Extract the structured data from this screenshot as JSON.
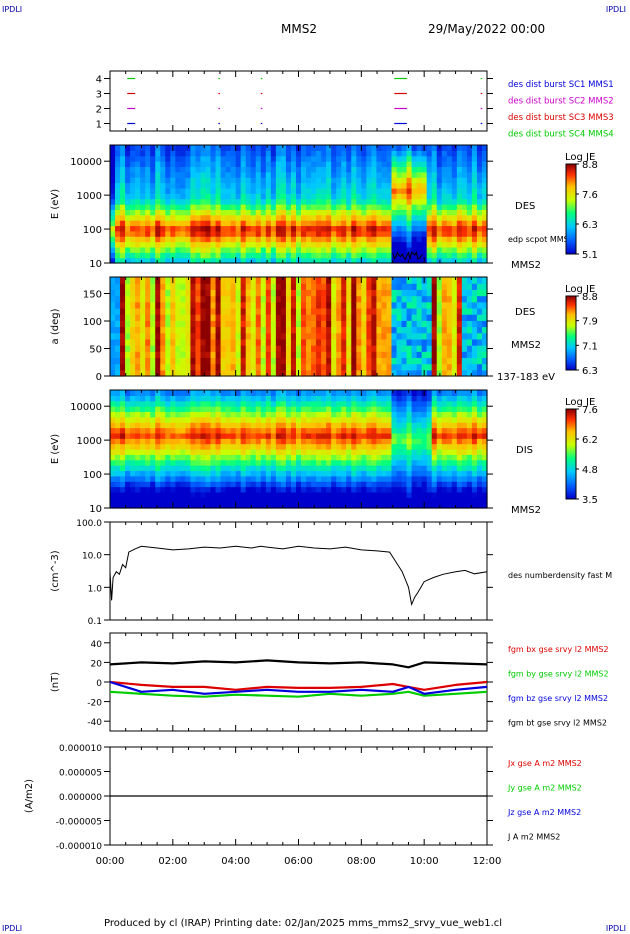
{
  "header": {
    "corner_label": "IPDLI",
    "spacecraft": "MMS2",
    "datetime": "29/May/2022 00:00"
  },
  "footer": {
    "text": "Produced by cl (IRAP)   Printing date: 02/Jan/2025   mms_mms2_srvy_vue_web1.cl"
  },
  "x_axis": {
    "ticks": [
      "00:00",
      "02:00",
      "04:00",
      "06:00",
      "08:00",
      "10:00",
      "12:00"
    ],
    "range_hours": [
      0,
      12
    ]
  },
  "colors": {
    "red": "#dd0000",
    "green": "#00cc00",
    "blue": "#0000dd",
    "magenta": "#cc00cc",
    "black": "#000000"
  },
  "chart_data": [
    {
      "type": "scatter",
      "id": "burst",
      "ylim": [
        0.5,
        4.5
      ],
      "y_ticks": [
        "1",
        "2",
        "3",
        "4"
      ],
      "legend": [
        {
          "label": "des dist burst SC1 MMS1",
          "color": "#0000dd"
        },
        {
          "label": "des dist burst SC2 MMS2",
          "color": "#cc00cc"
        },
        {
          "label": "des dist burst SC3 MMS3",
          "color": "#dd0000"
        },
        {
          "label": "des dist burst SC4 MMS4",
          "color": "#00cc00"
        }
      ],
      "series": [
        {
          "name": "des dist burst SC1 MMS1",
          "y": 1,
          "color": "#0000dd",
          "segments": [
            [
              0.55,
              0.8
            ],
            [
              3.45,
              3.47
            ],
            [
              4.8,
              4.82
            ],
            [
              9.05,
              9.45
            ],
            [
              11.8,
              11.85
            ]
          ]
        },
        {
          "name": "des dist burst SC2 MMS2",
          "y": 2,
          "color": "#cc00cc",
          "segments": [
            [
              0.55,
              0.8
            ],
            [
              3.45,
              3.47
            ],
            [
              4.8,
              4.82
            ],
            [
              9.05,
              9.45
            ],
            [
              11.8,
              11.85
            ]
          ]
        },
        {
          "name": "des dist burst SC3 MMS3",
          "y": 3,
          "color": "#dd0000",
          "segments": [
            [
              0.55,
              0.8
            ],
            [
              3.45,
              3.47
            ],
            [
              4.8,
              4.82
            ],
            [
              9.05,
              9.45
            ],
            [
              11.8,
              11.85
            ]
          ]
        },
        {
          "name": "des dist burst SC4 MMS4",
          "y": 4,
          "color": "#00cc00",
          "segments": [
            [
              0.55,
              0.8
            ],
            [
              3.45,
              3.47
            ],
            [
              4.8,
              4.82
            ],
            [
              9.05,
              9.45
            ],
            [
              11.8,
              11.85
            ]
          ]
        }
      ]
    },
    {
      "type": "heatmap",
      "id": "des_energy",
      "ylabel": "E (eV)",
      "y_scale": "log",
      "ylim": [
        10,
        30000
      ],
      "y_ticks": [
        "10",
        "100",
        "1000",
        "10000"
      ],
      "side_label": "DES",
      "overlay_label": "edp scpot MMS2",
      "mms_label": "MMS2",
      "colorbar": {
        "title": "Log JE",
        "ticks": [
          "8.8",
          "7.6",
          "6.3",
          "5.1"
        ],
        "min": 5.1,
        "max": 8.8
      }
    },
    {
      "type": "heatmap",
      "id": "des_pitch",
      "ylabel": "a (deg)",
      "ylim": [
        0,
        180
      ],
      "y_ticks": [
        "0",
        "50",
        "100",
        "150"
      ],
      "side_label": "DES",
      "mms_label": "MMS2",
      "energy_label": "137-183 eV",
      "colorbar": {
        "title": "Log JE",
        "ticks": [
          "8.8",
          "7.9",
          "7.1",
          "6.3"
        ],
        "min": 6.3,
        "max": 8.8
      }
    },
    {
      "type": "heatmap",
      "id": "dis_energy",
      "ylabel": "E (eV)",
      "y_scale": "log",
      "ylim": [
        10,
        30000
      ],
      "y_ticks": [
        "10",
        "100",
        "1000",
        "10000"
      ],
      "side_label": "DIS",
      "mms_label": "MMS2",
      "colorbar": {
        "title": "Log JE",
        "ticks": [
          "7.6",
          "6.2",
          "4.8",
          "3.5"
        ],
        "min": 3.5,
        "max": 7.6
      }
    },
    {
      "type": "line",
      "id": "density",
      "ylabel": "(cm^-3)",
      "y_scale": "log",
      "ylim": [
        0.1,
        100
      ],
      "y_ticks": [
        "0.1",
        "1.0",
        "10.0",
        "100.0"
      ],
      "legend": [
        {
          "label": "des numberdensity fast M",
          "color": "#000000"
        }
      ],
      "series": [
        {
          "name": "des numberdensity fast M",
          "color": "#000000",
          "x": [
            0.0,
            0.05,
            0.1,
            0.2,
            0.3,
            0.4,
            0.5,
            0.6,
            0.8,
            1.0,
            1.5,
            2.0,
            2.5,
            3.0,
            3.5,
            4.0,
            4.5,
            4.8,
            5.0,
            5.5,
            6.0,
            6.5,
            7.0,
            7.5,
            8.0,
            8.5,
            8.9,
            9.1,
            9.3,
            9.5,
            9.6,
            9.7,
            9.8,
            10.0,
            10.3,
            10.6,
            11.0,
            11.3,
            11.6,
            12.0
          ],
          "y": [
            3,
            0.4,
            2,
            3,
            2.5,
            5,
            4,
            12,
            15,
            18,
            16,
            14,
            15,
            17,
            16,
            18,
            16,
            18,
            17,
            15,
            18,
            16,
            15,
            17,
            14,
            13,
            12,
            6,
            3,
            1.0,
            0.3,
            0.5,
            0.7,
            1.5,
            2,
            2.5,
            3,
            3.3,
            2.6,
            3
          ]
        }
      ]
    },
    {
      "type": "line",
      "id": "fgm",
      "ylabel": "(nT)",
      "ylim": [
        -50,
        50
      ],
      "y_ticks": [
        "-40",
        "-20",
        "0",
        "20",
        "40"
      ],
      "legend": [
        {
          "label": "fgm bx gse srvy l2 MMS2",
          "color": "#dd0000"
        },
        {
          "label": "fgm by gse srvy l2 MMS2",
          "color": "#00cc00"
        },
        {
          "label": "fgm bz gse srvy l2 MMS2",
          "color": "#0000dd"
        },
        {
          "label": "fgm bt gse srvy l2 MMS2",
          "color": "#000000"
        }
      ],
      "series": [
        {
          "name": "fgm bx gse srvy l2 MMS2",
          "color": "#dd0000",
          "x": [
            0,
            1,
            2,
            3,
            4,
            5,
            6,
            7,
            8,
            9,
            9.5,
            10,
            11,
            12
          ],
          "y": [
            0,
            -3,
            -5,
            -5,
            -8,
            -5,
            -6,
            -6,
            -5,
            -2,
            -5,
            -8,
            -3,
            0
          ]
        },
        {
          "name": "fgm by gse srvy l2 MMS2",
          "color": "#00cc00",
          "x": [
            0,
            1,
            2,
            3,
            4,
            5,
            6,
            7,
            8,
            9,
            9.5,
            10,
            11,
            12
          ],
          "y": [
            -10,
            -12,
            -14,
            -15,
            -13,
            -14,
            -15,
            -12,
            -14,
            -12,
            -10,
            -14,
            -12,
            -10
          ]
        },
        {
          "name": "fgm bz gse srvy l2 MMS2",
          "color": "#0000dd",
          "x": [
            0,
            1,
            2,
            3,
            4,
            5,
            6,
            7,
            8,
            9,
            9.5,
            10,
            11,
            12
          ],
          "y": [
            0,
            -10,
            -8,
            -12,
            -10,
            -8,
            -10,
            -10,
            -8,
            -10,
            -5,
            -12,
            -8,
            -5
          ]
        },
        {
          "name": "fgm bt gse srvy l2 MMS2",
          "color": "#000000",
          "x": [
            0,
            1,
            2,
            3,
            4,
            5,
            6,
            7,
            8,
            9,
            9.5,
            10,
            11,
            12
          ],
          "y": [
            18,
            20,
            19,
            21,
            20,
            22,
            20,
            19,
            20,
            18,
            15,
            20,
            19,
            18
          ]
        }
      ]
    },
    {
      "type": "line",
      "id": "current",
      "ylabel": "(A/m2)",
      "ylim": [
        -0.0001,
        0.0001
      ],
      "y_ticks": [
        "-0.000010",
        "-0.000005",
        "0.000000",
        "0.000005",
        "0.000010"
      ],
      "legend": [
        {
          "label": "Jx gse A m2 MMS2",
          "color": "#dd0000"
        },
        {
          "label": "Jy gse A m2 MMS2",
          "color": "#00cc00"
        },
        {
          "label": "Jz gse A m2 MMS2",
          "color": "#0000dd"
        },
        {
          "label": "J A m2 MMS2",
          "color": "#000000"
        }
      ],
      "series": [
        {
          "name": "J A m2 MMS2",
          "color": "#000000",
          "x": [
            0,
            12
          ],
          "y": [
            0,
            0
          ]
        }
      ]
    }
  ]
}
